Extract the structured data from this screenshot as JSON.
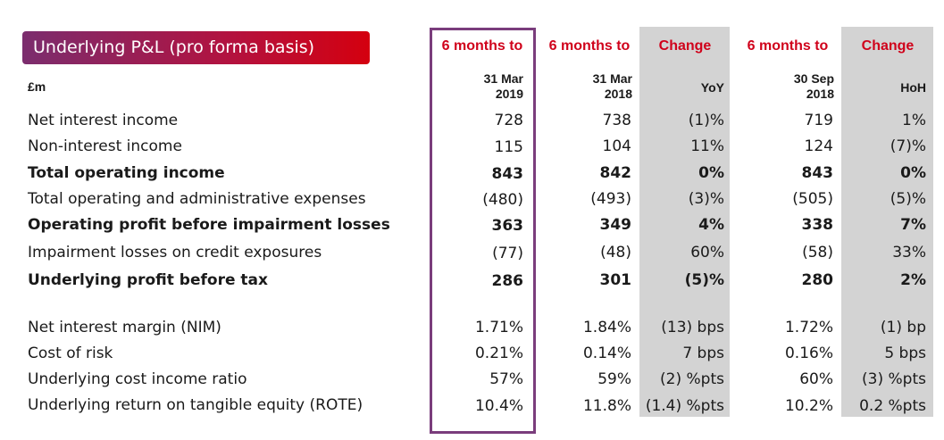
{
  "title": "Underlying P&L (pro forma basis)",
  "unit_label": "£m",
  "headers": {
    "c1": "6 months to",
    "c2": "6 months to",
    "c3": "Change",
    "c4": "6 months to",
    "c5": "Change"
  },
  "subheaders": {
    "c1_line1": "31 Mar",
    "c1_line2": "2019",
    "c2_line1": "31 Mar",
    "c2_line2": "2018",
    "c3": "YoY",
    "c4_line1": "30 Sep",
    "c4_line2": "2018",
    "c5": "HoH"
  },
  "rows": [
    {
      "label": "Net interest income",
      "c1": "728",
      "c2": "738",
      "c3": "(1)%",
      "c4": "719",
      "c5": "1%"
    },
    {
      "label": "Non-interest income",
      "c1": "115",
      "c2": "104",
      "c3": "11%",
      "c4": "124",
      "c5": "(7)%"
    },
    {
      "label": "Total operating income",
      "c1": "843",
      "c2": "842",
      "c3": "0%",
      "c4": "843",
      "c5": "0%"
    },
    {
      "label": "Total operating and administrative expenses",
      "c1": "(480)",
      "c2": "(493)",
      "c3": "(3)%",
      "c4": "(505)",
      "c5": "(5)%"
    },
    {
      "label": "Operating profit before impairment losses",
      "c1": "363",
      "c2": "349",
      "c3": "4%",
      "c4": "338",
      "c5": "7%"
    },
    {
      "label": "Impairment losses on credit exposures",
      "c1": "(77)",
      "c2": "(48)",
      "c3": "60%",
      "c4": "(58)",
      "c5": "33%"
    },
    {
      "label": "Underlying profit before tax",
      "c1": "286",
      "c2": "301",
      "c3": "(5)%",
      "c4": "280",
      "c5": "2%"
    },
    {
      "label": "Net interest margin (NIM)",
      "c1": "1.71%",
      "c2": "1.84%",
      "c3": "(13) bps",
      "c4": "1.72%",
      "c5": "(1) bp"
    },
    {
      "label": "Cost of risk",
      "c1": "0.21%",
      "c2": "0.14%",
      "c3": "7 bps",
      "c4": "0.16%",
      "c5": "5 bps"
    },
    {
      "label": "Underlying cost income ratio",
      "c1": "57%",
      "c2": "59%",
      "c3": "(2) %pts",
      "c4": "60%",
      "c5": "(3) %pts"
    },
    {
      "label": "Underlying return on tangible equity (ROTE)",
      "c1": "10.4%",
      "c2": "11.8%",
      "c3": "(1.4) %pts",
      "c4": "10.2%",
      "c5": "0.2 %pts"
    }
  ],
  "colors": {
    "accent_red": "#d0021b",
    "purple_box": "#7a3d7c",
    "shade": "#d3d3d3"
  }
}
